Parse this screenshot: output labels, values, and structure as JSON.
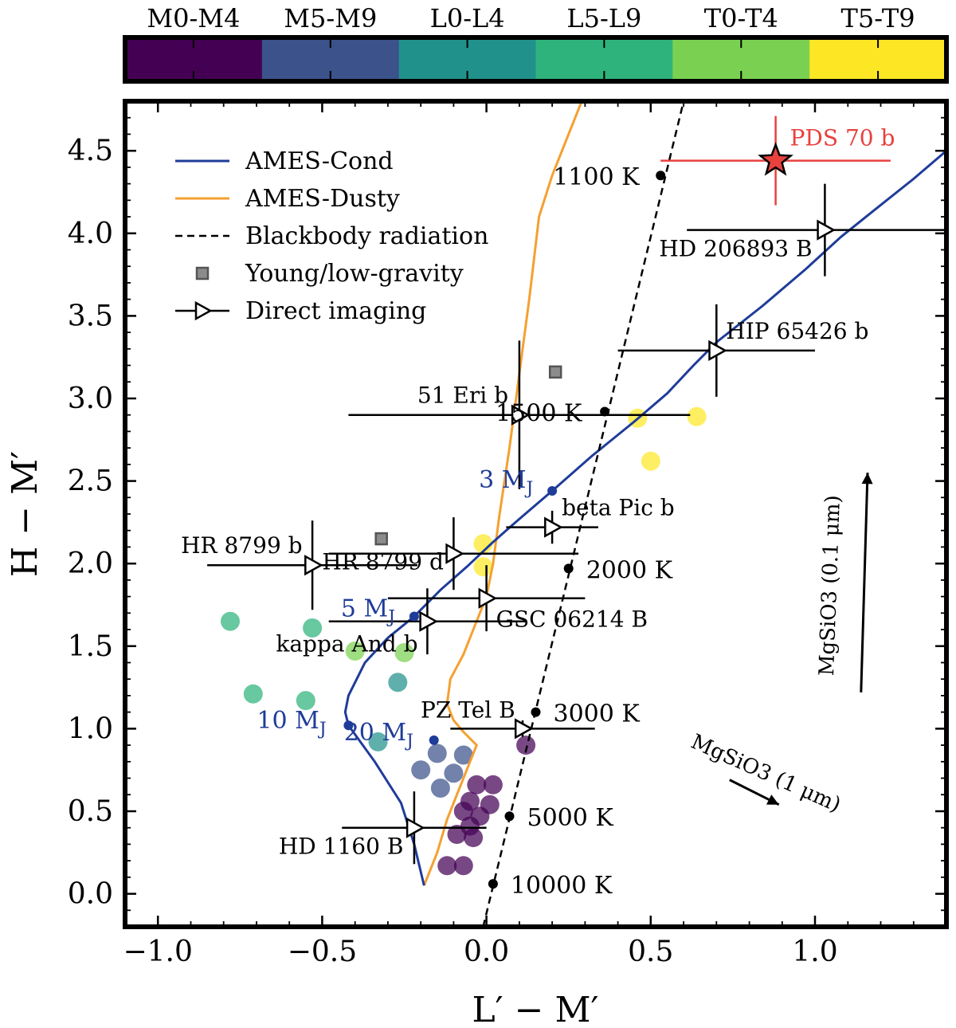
{
  "chart_data": {
    "type": "scatter",
    "xlabel": "L′ − M′",
    "ylabel": "H − M′",
    "xlim": [
      -1.1,
      1.4
    ],
    "ylim": [
      -0.2,
      4.8
    ],
    "xticks": [
      -1.0,
      -0.5,
      0.0,
      0.5,
      1.0
    ],
    "xtick_labels": [
      "−1.0",
      "−0.5",
      "0.0",
      "0.5",
      "1.0"
    ],
    "yticks": [
      0.0,
      0.5,
      1.0,
      1.5,
      2.0,
      2.5,
      3.0,
      3.5,
      4.0,
      4.5
    ],
    "ytick_labels": [
      "0.0",
      "0.5",
      "1.0",
      "1.5",
      "2.0",
      "2.5",
      "3.0",
      "3.5",
      "4.0",
      "4.5"
    ],
    "grid": false,
    "legend_position": "top-left",
    "colorbar": {
      "position": "top",
      "labels": [
        "M0-M4",
        "M5-M9",
        "L0-L4",
        "L5-L9",
        "T0-T4",
        "T5-T9"
      ],
      "colors": [
        "#440154",
        "#3b528b",
        "#21918c",
        "#2eb37c",
        "#7ad151",
        "#fde725"
      ]
    },
    "legend": [
      {
        "label": "AMES-Cond",
        "symbol": "line",
        "color": "#1f3c99"
      },
      {
        "label": "AMES-Dusty",
        "symbol": "line",
        "color": "#f5a030"
      },
      {
        "label": "Blackbody radiation",
        "symbol": "dashed",
        "color": "#000000"
      },
      {
        "label": "Young/low-gravity",
        "symbol": "square",
        "color": "#8c8c8c"
      },
      {
        "label": "Direct imaging",
        "symbol": "triangle",
        "color": "#000000"
      }
    ],
    "ames_cond": {
      "color": "#1f3c99",
      "points": [
        [
          -0.19,
          0.05
        ],
        [
          -0.22,
          0.3
        ],
        [
          -0.26,
          0.55
        ],
        [
          -0.34,
          0.8
        ],
        [
          -0.42,
          1.02
        ],
        [
          -0.43,
          1.1
        ],
        [
          -0.42,
          1.2
        ],
        [
          -0.37,
          1.4
        ],
        [
          -0.3,
          1.55
        ],
        [
          -0.22,
          1.68
        ],
        [
          -0.14,
          1.84
        ],
        [
          -0.06,
          1.98
        ],
        [
          0.02,
          2.13
        ],
        [
          0.1,
          2.27
        ],
        [
          0.2,
          2.44
        ],
        [
          0.32,
          2.65
        ],
        [
          0.45,
          2.86
        ],
        [
          0.55,
          3.03
        ],
        [
          0.63,
          3.2
        ],
        [
          0.7,
          3.34
        ],
        [
          0.84,
          3.56
        ],
        [
          0.97,
          3.78
        ],
        [
          1.08,
          3.98
        ],
        [
          1.18,
          4.14
        ],
        [
          1.3,
          4.33
        ],
        [
          1.4,
          4.5
        ]
      ],
      "mass_markers": [
        {
          "label": "3 MJ",
          "x": 0.2,
          "y": 2.44
        },
        {
          "label": "5 MJ",
          "x": -0.22,
          "y": 1.68
        },
        {
          "label": "10 MJ",
          "x": -0.42,
          "y": 1.02
        },
        {
          "label": "20 MJ",
          "x": -0.16,
          "y": 0.93
        }
      ]
    },
    "ames_dusty": {
      "color": "#f5a030",
      "points": [
        [
          -0.19,
          0.05
        ],
        [
          -0.15,
          0.25
        ],
        [
          -0.12,
          0.45
        ],
        [
          -0.08,
          0.65
        ],
        [
          -0.05,
          0.8
        ],
        [
          -0.03,
          0.9
        ],
        [
          -0.07,
          0.98
        ],
        [
          -0.1,
          1.05
        ],
        [
          -0.12,
          1.15
        ],
        [
          -0.11,
          1.3
        ],
        [
          -0.07,
          1.45
        ],
        [
          -0.04,
          1.6
        ],
        [
          0.0,
          1.8
        ],
        [
          0.02,
          2.0
        ],
        [
          0.04,
          2.3
        ],
        [
          0.07,
          2.7
        ],
        [
          0.09,
          3.0
        ],
        [
          0.11,
          3.3
        ],
        [
          0.13,
          3.6
        ],
        [
          0.16,
          4.1
        ],
        [
          0.2,
          4.35
        ],
        [
          0.25,
          4.6
        ],
        [
          0.29,
          4.8
        ]
      ]
    },
    "blackbody": {
      "line": [
        [
          -0.01,
          -0.2
        ],
        [
          0.6,
          4.8
        ]
      ],
      "points": [
        {
          "label": "1100 K",
          "x": 0.53,
          "y": 4.35
        },
        {
          "label": "1500 K",
          "x": 0.36,
          "y": 2.92
        },
        {
          "label": "2000 K",
          "x": 0.25,
          "y": 1.97
        },
        {
          "label": "3000 K",
          "x": 0.15,
          "y": 1.1
        },
        {
          "label": "5000 K",
          "x": 0.07,
          "y": 0.47
        },
        {
          "label": "10000 K",
          "x": 0.02,
          "y": 0.06
        }
      ]
    },
    "field_objects": [
      {
        "x": -0.78,
        "y": 1.65,
        "type": "L5-L9"
      },
      {
        "x": -0.71,
        "y": 1.21,
        "type": "L5-L9"
      },
      {
        "x": -0.53,
        "y": 1.61,
        "type": "L5-L9"
      },
      {
        "x": -0.55,
        "y": 1.17,
        "type": "L5-L9"
      },
      {
        "x": -0.4,
        "y": 1.47,
        "type": "T0-T4"
      },
      {
        "x": -0.25,
        "y": 1.46,
        "type": "T0-T4"
      },
      {
        "x": -0.27,
        "y": 1.28,
        "type": "L0-L4"
      },
      {
        "x": -0.33,
        "y": 0.92,
        "type": "L0-L4"
      },
      {
        "x": -0.2,
        "y": 0.75,
        "type": "M5-M9"
      },
      {
        "x": -0.15,
        "y": 0.85,
        "type": "M5-M9"
      },
      {
        "x": -0.07,
        "y": 0.84,
        "type": "M5-M9"
      },
      {
        "x": -0.1,
        "y": 0.73,
        "type": "M5-M9"
      },
      {
        "x": -0.14,
        "y": 0.64,
        "type": "M5-M9"
      },
      {
        "x": -0.03,
        "y": 0.66,
        "type": "M0-M4"
      },
      {
        "x": 0.02,
        "y": 0.66,
        "type": "M0-M4"
      },
      {
        "x": -0.05,
        "y": 0.56,
        "type": "M0-M4"
      },
      {
        "x": 0.01,
        "y": 0.54,
        "type": "M0-M4"
      },
      {
        "x": -0.07,
        "y": 0.5,
        "type": "M0-M4"
      },
      {
        "x": -0.02,
        "y": 0.47,
        "type": "M0-M4"
      },
      {
        "x": -0.05,
        "y": 0.41,
        "type": "M0-M4"
      },
      {
        "x": -0.09,
        "y": 0.36,
        "type": "M0-M4"
      },
      {
        "x": -0.04,
        "y": 0.34,
        "type": "M0-M4"
      },
      {
        "x": -0.07,
        "y": 0.17,
        "type": "M0-M4"
      },
      {
        "x": -0.12,
        "y": 0.17,
        "type": "M0-M4"
      },
      {
        "x": 0.12,
        "y": 0.9,
        "type": "M0-M4"
      },
      {
        "x": 0.46,
        "y": 2.88,
        "type": "T5-T9"
      },
      {
        "x": 0.64,
        "y": 2.89,
        "type": "T5-T9"
      },
      {
        "x": 0.5,
        "y": 2.62,
        "type": "T5-T9"
      },
      {
        "x": -0.01,
        "y": 2.12,
        "type": "T5-T9"
      },
      {
        "x": -0.01,
        "y": 1.98,
        "type": "T5-T9"
      }
    ],
    "young_low_gravity": [
      {
        "x": 0.21,
        "y": 3.16
      },
      {
        "x": -0.32,
        "y": 2.15
      }
    ],
    "direct_imaging": [
      {
        "label": "HD 206893 B",
        "x": 1.03,
        "y": 4.02,
        "xerr": 0.42,
        "yerr": 0.28
      },
      {
        "label": "HIP 65426 b",
        "x": 0.7,
        "y": 3.29,
        "xerr": 0.3,
        "yerr": 0.28
      },
      {
        "label": "51 Eri b",
        "x": 0.1,
        "y": 2.9,
        "xerr": 0.52,
        "yerr": 0.45
      },
      {
        "label": "beta Pic b",
        "x": 0.2,
        "y": 2.22,
        "xerr": 0.14,
        "yerr": 0.1
      },
      {
        "label": "HR 8799 d",
        "x": -0.1,
        "y": 2.06,
        "xerr": 0.38,
        "yerr": 0.22
      },
      {
        "label": "HR 8799 b",
        "x": -0.53,
        "y": 1.99,
        "xerr": 0.32,
        "yerr": 0.27
      },
      {
        "label": "GSC 06214 B",
        "x": 0.0,
        "y": 1.79,
        "xerr": 0.3,
        "yerr": 0.2
      },
      {
        "label": "kappa And b",
        "x": -0.18,
        "y": 1.65,
        "xerr": 0.3,
        "yerr": 0.2
      },
      {
        "label": "PZ Tel B",
        "x": 0.11,
        "y": 1.0,
        "xerr": 0.22,
        "yerr": 0.05
      },
      {
        "label": "HD 1160 B",
        "x": -0.22,
        "y": 0.4,
        "xerr": 0.22,
        "yerr": 0.22
      }
    ],
    "target": {
      "label": "PDS 70 b",
      "x": 0.88,
      "y": 4.44,
      "xerr": 0.35,
      "yerr": 0.27,
      "color": "#e8413e"
    },
    "reddening_vectors": [
      {
        "label": "MgSiO3 (0.1 μm)",
        "x0": 1.14,
        "y0": 1.22,
        "x1": 1.16,
        "y1": 2.55
      },
      {
        "label": "MgSiO3 (1 μm)",
        "x0": 0.74,
        "y0": 0.69,
        "x1": 0.89,
        "y1": 0.54
      }
    ]
  }
}
